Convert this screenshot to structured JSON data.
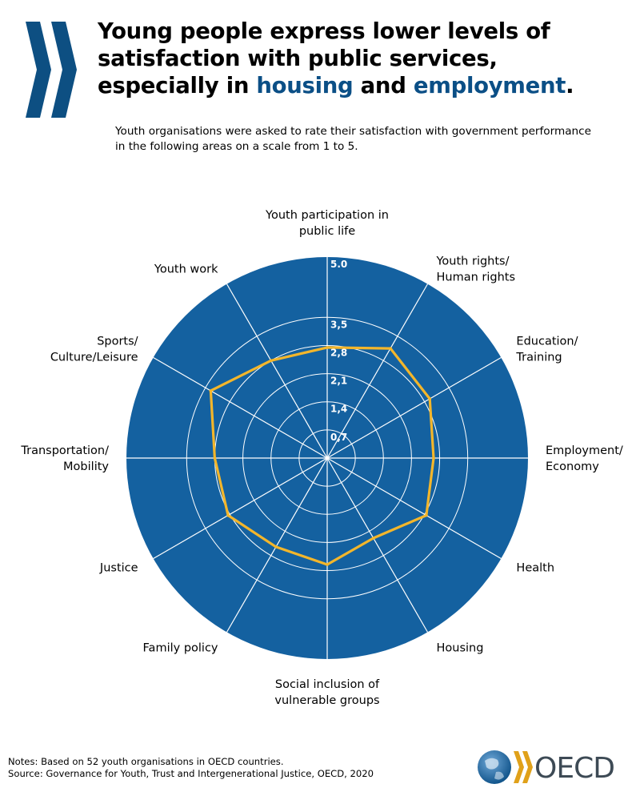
{
  "header": {
    "title_part1": "Young people express lower levels of satisfaction with public services, especially in ",
    "title_highlight1": "housing",
    "title_part2": " and ",
    "title_highlight2": "employment",
    "title_part3": ".",
    "subtitle": "Youth organisations were asked to rate their satisfaction with government performance in the following areas on a scale from 1 to 5."
  },
  "chart_data": {
    "type": "radar",
    "categories": [
      "Youth participation in public life",
      "Youth rights/ Human rights",
      "Education/ Training",
      "Employment/ Economy",
      "Health",
      "Housing",
      "Social inclusion of vulnerable groups",
      "Family policy",
      "Justice",
      "Transportation/ Mobility",
      "Sports/ Culture/Leisure",
      "Youth work"
    ],
    "series": [
      {
        "values": [
          2.75,
          3.15,
          2.95,
          2.65,
          2.85,
          2.3,
          2.65,
          2.55,
          2.85,
          2.8,
          3.35,
          2.8
        ],
        "color": "#f3b62b"
      }
    ],
    "rlim": [
      0,
      5
    ],
    "ticks": [
      {
        "value": 0.7,
        "label": "0,7"
      },
      {
        "value": 1.4,
        "label": "1,4"
      },
      {
        "value": 2.1,
        "label": "2,1"
      },
      {
        "value": 2.8,
        "label": "2,8"
      },
      {
        "value": 3.5,
        "label": "3,5"
      },
      {
        "value": 5.0,
        "label": "5.0"
      }
    ],
    "background_color": "#1461a0",
    "grid_color": "#ffffff"
  },
  "footer": {
    "notes": "Notes: Based on 52 youth organisations in OECD countries.",
    "source": "Source: Governance for Youth, Trust and Intergenerational Justice, OECD, 2020",
    "logo_text": "OECD"
  },
  "colors": {
    "brand_blue": "#0b4f86",
    "chevron_blue": "#0d4f82",
    "line_yellow": "#f3b62b"
  }
}
